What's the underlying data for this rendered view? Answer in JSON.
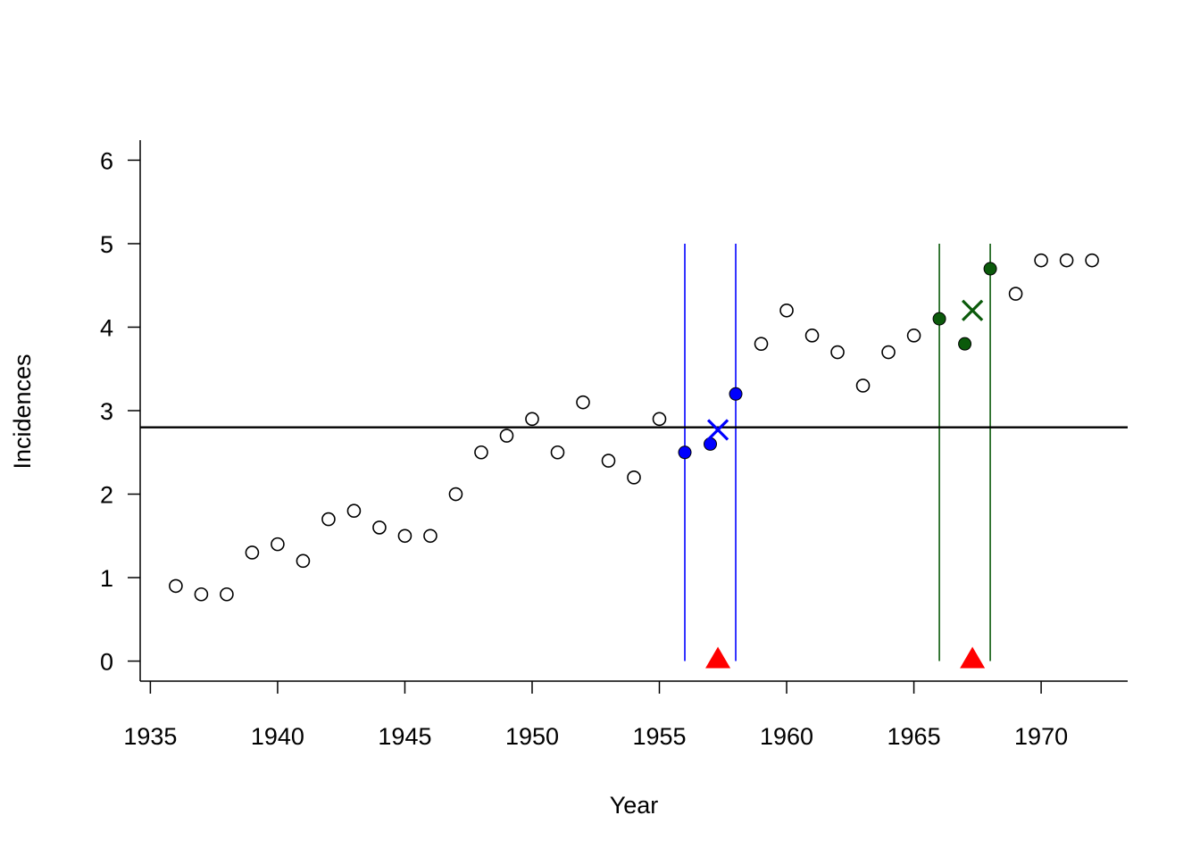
{
  "chart_data": {
    "type": "scatter",
    "xlabel": "Year",
    "ylabel": "Incidences",
    "xlim": [
      1934.6,
      1973.4
    ],
    "ylim": [
      -0.24,
      6.24
    ],
    "x_ticks": [
      "1935",
      "1940",
      "1945",
      "1950",
      "1955",
      "1960",
      "1965",
      "1970"
    ],
    "y_ticks": [
      "0",
      "1",
      "2",
      "3",
      "4",
      "5",
      "6"
    ],
    "grid": false,
    "series": [
      {
        "marker": "open-circle",
        "color": "#000000",
        "points": [
          [
            1936,
            0.9
          ],
          [
            1937,
            0.8
          ],
          [
            1938,
            0.8
          ],
          [
            1939,
            1.3
          ],
          [
            1940,
            1.4
          ],
          [
            1941,
            1.2
          ],
          [
            1942,
            1.7
          ],
          [
            1943,
            1.8
          ],
          [
            1944,
            1.6
          ],
          [
            1945,
            1.5
          ],
          [
            1946,
            1.5
          ],
          [
            1947,
            2.0
          ],
          [
            1948,
            2.5
          ],
          [
            1949,
            2.7
          ],
          [
            1950,
            2.9
          ],
          [
            1951,
            2.5
          ],
          [
            1952,
            3.1
          ],
          [
            1953,
            2.4
          ],
          [
            1954,
            2.2
          ],
          [
            1955,
            2.9
          ],
          [
            1959,
            3.8
          ],
          [
            1960,
            4.2
          ],
          [
            1961,
            3.9
          ],
          [
            1962,
            3.7
          ],
          [
            1963,
            3.3
          ],
          [
            1964,
            3.7
          ],
          [
            1965,
            3.9
          ],
          [
            1969,
            4.4
          ],
          [
            1970,
            4.8
          ],
          [
            1971,
            4.8
          ],
          [
            1972,
            4.8
          ]
        ]
      },
      {
        "marker": "filled-circle",
        "color": "#0000ff",
        "points": [
          [
            1956,
            2.5
          ],
          [
            1957,
            2.6
          ],
          [
            1958,
            3.2
          ]
        ]
      },
      {
        "marker": "filled-circle",
        "color": "#0b5a0b",
        "points": [
          [
            1966,
            4.1
          ],
          [
            1967,
            3.8
          ],
          [
            1968,
            4.7
          ]
        ]
      }
    ],
    "mean_markers": [
      {
        "x": 1957.3,
        "y": 2.77,
        "color": "#0000ff"
      },
      {
        "x": 1967.3,
        "y": 4.2,
        "color": "#0b5a0b"
      }
    ],
    "triangles": [
      {
        "x": 1957.3,
        "y": 0,
        "color": "#ff0000"
      },
      {
        "x": 1967.3,
        "y": 0,
        "color": "#ff0000"
      }
    ],
    "vertical_lines": [
      {
        "x": 1956,
        "y0": 0,
        "y1": 5,
        "color": "#0000ff"
      },
      {
        "x": 1958,
        "y0": 0,
        "y1": 5,
        "color": "#0000ff"
      },
      {
        "x": 1966,
        "y0": 0,
        "y1": 5,
        "color": "#0b5a0b"
      },
      {
        "x": 1968,
        "y0": 0,
        "y1": 5,
        "color": "#0b5a0b"
      }
    ],
    "hline": {
      "y": 2.8,
      "color": "#000000"
    }
  }
}
